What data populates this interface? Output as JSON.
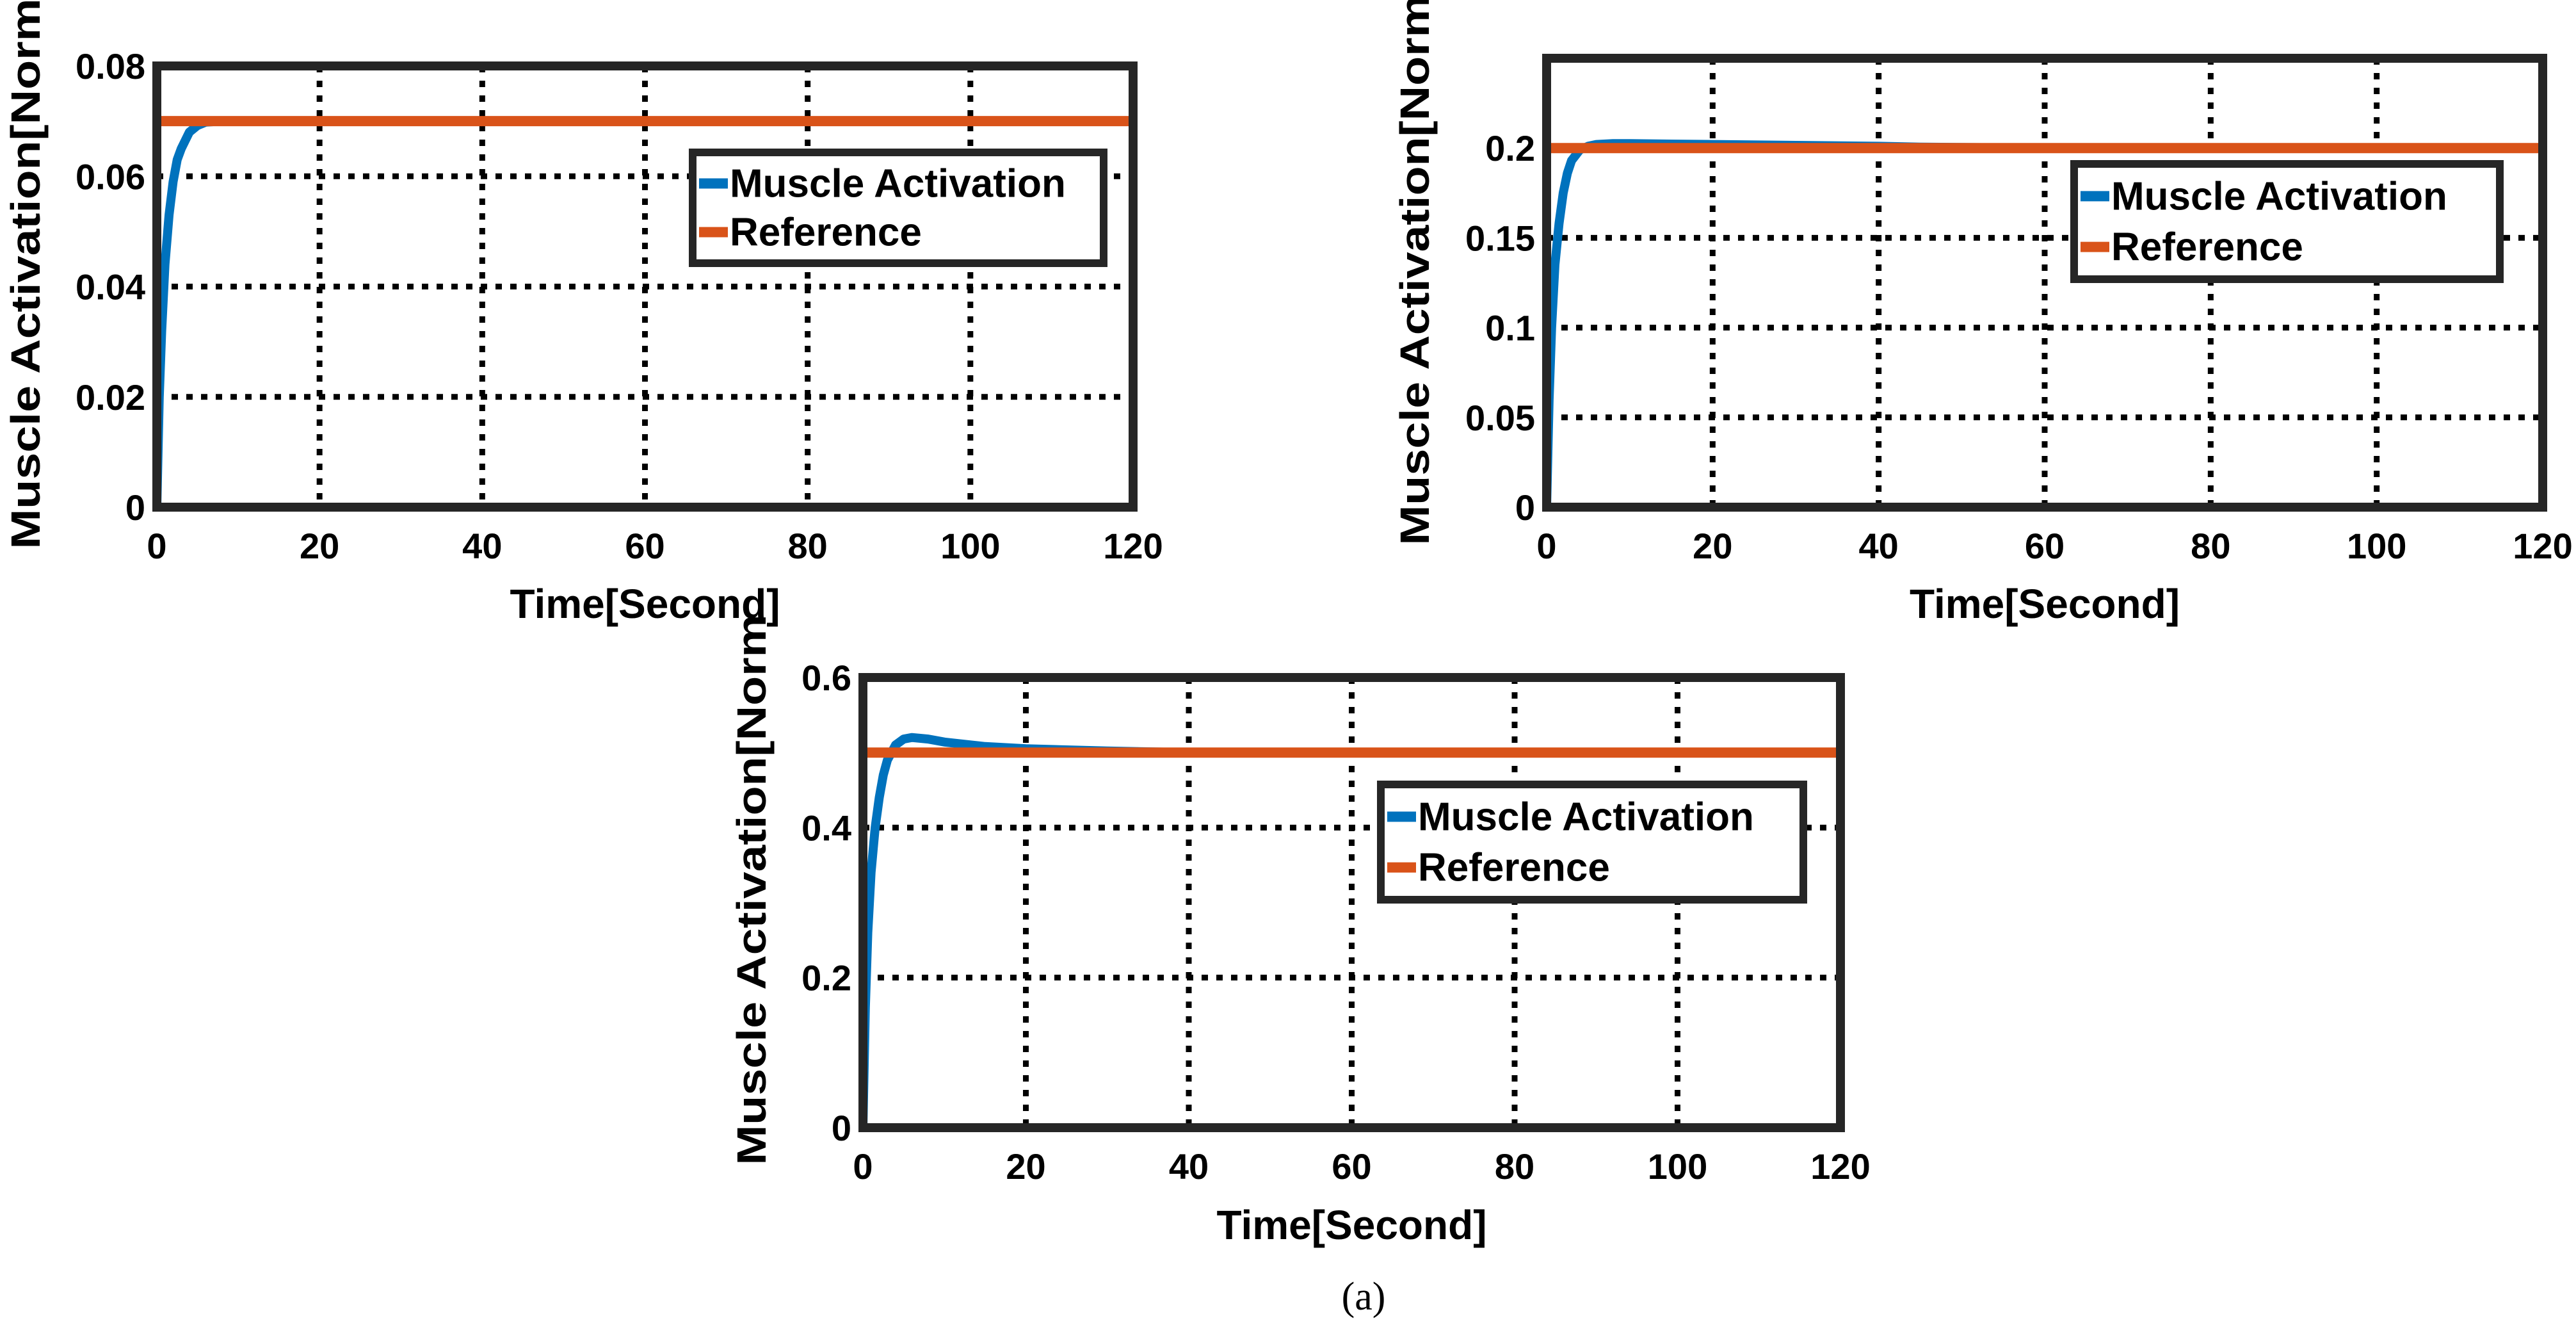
{
  "caption": "(a)",
  "colors": {
    "activation": "#0072BD",
    "reference": "#D95319",
    "axis": "#262626"
  },
  "chart_data": [
    {
      "type": "line",
      "xlabel": "Time[Second]",
      "ylabel": "Muscle Activation[Norm",
      "xlim": [
        0,
        120
      ],
      "ylim": [
        0,
        0.08
      ],
      "xticks": [
        0,
        20,
        40,
        60,
        80,
        100,
        120
      ],
      "xtick_labels": [
        "0",
        "20",
        "40",
        "60",
        "80",
        "100",
        "120"
      ],
      "yticks": [
        0,
        0.02,
        0.04,
        0.06,
        0.08
      ],
      "ytick_labels": [
        "0",
        "0.02",
        "0.04",
        "0.06",
        "0.08"
      ],
      "grid": true,
      "legend_position": "upper-right",
      "series": [
        {
          "name": "Muscle Activation",
          "x": [
            0,
            0.3,
            0.6,
            1,
            1.5,
            2,
            2.5,
            3,
            4,
            5,
            6,
            8,
            10,
            15,
            20,
            30,
            40,
            60,
            80,
            100,
            120
          ],
          "values": [
            0,
            0.02,
            0.032,
            0.044,
            0.053,
            0.059,
            0.063,
            0.065,
            0.068,
            0.0692,
            0.0698,
            0.07,
            0.07,
            0.07,
            0.07,
            0.07,
            0.07,
            0.07,
            0.07,
            0.07,
            0.07
          ]
        },
        {
          "name": "Reference",
          "x": [
            0,
            120
          ],
          "values": [
            0.07,
            0.07
          ]
        }
      ]
    },
    {
      "type": "line",
      "xlabel": "Time[Second]",
      "ylabel": "Muscle Activation[Norm",
      "xlim": [
        0,
        120
      ],
      "ylim": [
        0,
        0.25
      ],
      "xticks": [
        0,
        20,
        40,
        60,
        80,
        100,
        120
      ],
      "xtick_labels": [
        "0",
        "20",
        "40",
        "60",
        "80",
        "100",
        "120"
      ],
      "yticks": [
        0,
        0.05,
        0.1,
        0.15,
        0.2
      ],
      "ytick_labels": [
        "0",
        "0.05",
        "0.1",
        "0.15",
        "0.2"
      ],
      "grid": true,
      "legend_position": "upper-right",
      "series": [
        {
          "name": "Muscle Activation",
          "x": [
            0,
            0.3,
            0.6,
            1,
            1.5,
            2,
            2.5,
            3,
            4,
            5,
            6,
            8,
            10,
            15,
            20,
            30,
            40,
            45,
            60,
            80,
            100,
            120
          ],
          "values": [
            0,
            0.06,
            0.1,
            0.135,
            0.158,
            0.175,
            0.186,
            0.193,
            0.199,
            0.201,
            0.202,
            0.2025,
            0.2025,
            0.2022,
            0.202,
            0.2015,
            0.201,
            0.2005,
            0.2,
            0.2,
            0.2,
            0.2
          ]
        },
        {
          "name": "Reference",
          "x": [
            0,
            120
          ],
          "values": [
            0.2,
            0.2
          ]
        }
      ]
    },
    {
      "type": "line",
      "xlabel": "Time[Second]",
      "ylabel": "Muscle Activation[Norm",
      "xlim": [
        0,
        120
      ],
      "ylim": [
        0,
        0.6
      ],
      "xticks": [
        0,
        20,
        40,
        60,
        80,
        100,
        120
      ],
      "xtick_labels": [
        "0",
        "20",
        "40",
        "60",
        "80",
        "100",
        "120"
      ],
      "yticks": [
        0,
        0.2,
        0.4,
        0.6
      ],
      "ytick_labels": [
        "0",
        "0.2",
        "0.4",
        "0.6"
      ],
      "grid": true,
      "legend_position": "upper-right",
      "series": [
        {
          "name": "Muscle Activation",
          "x": [
            0,
            0.3,
            0.6,
            1,
            1.5,
            2,
            2.5,
            3,
            4,
            5,
            6,
            8,
            10,
            15,
            20,
            30,
            40,
            60,
            80,
            100,
            120
          ],
          "values": [
            0,
            0.16,
            0.26,
            0.34,
            0.4,
            0.44,
            0.47,
            0.49,
            0.51,
            0.518,
            0.52,
            0.518,
            0.514,
            0.508,
            0.505,
            0.502,
            0.5,
            0.5,
            0.5,
            0.5,
            0.5
          ]
        },
        {
          "name": "Reference",
          "x": [
            0,
            120
          ],
          "values": [
            0.5,
            0.5
          ]
        }
      ]
    }
  ]
}
